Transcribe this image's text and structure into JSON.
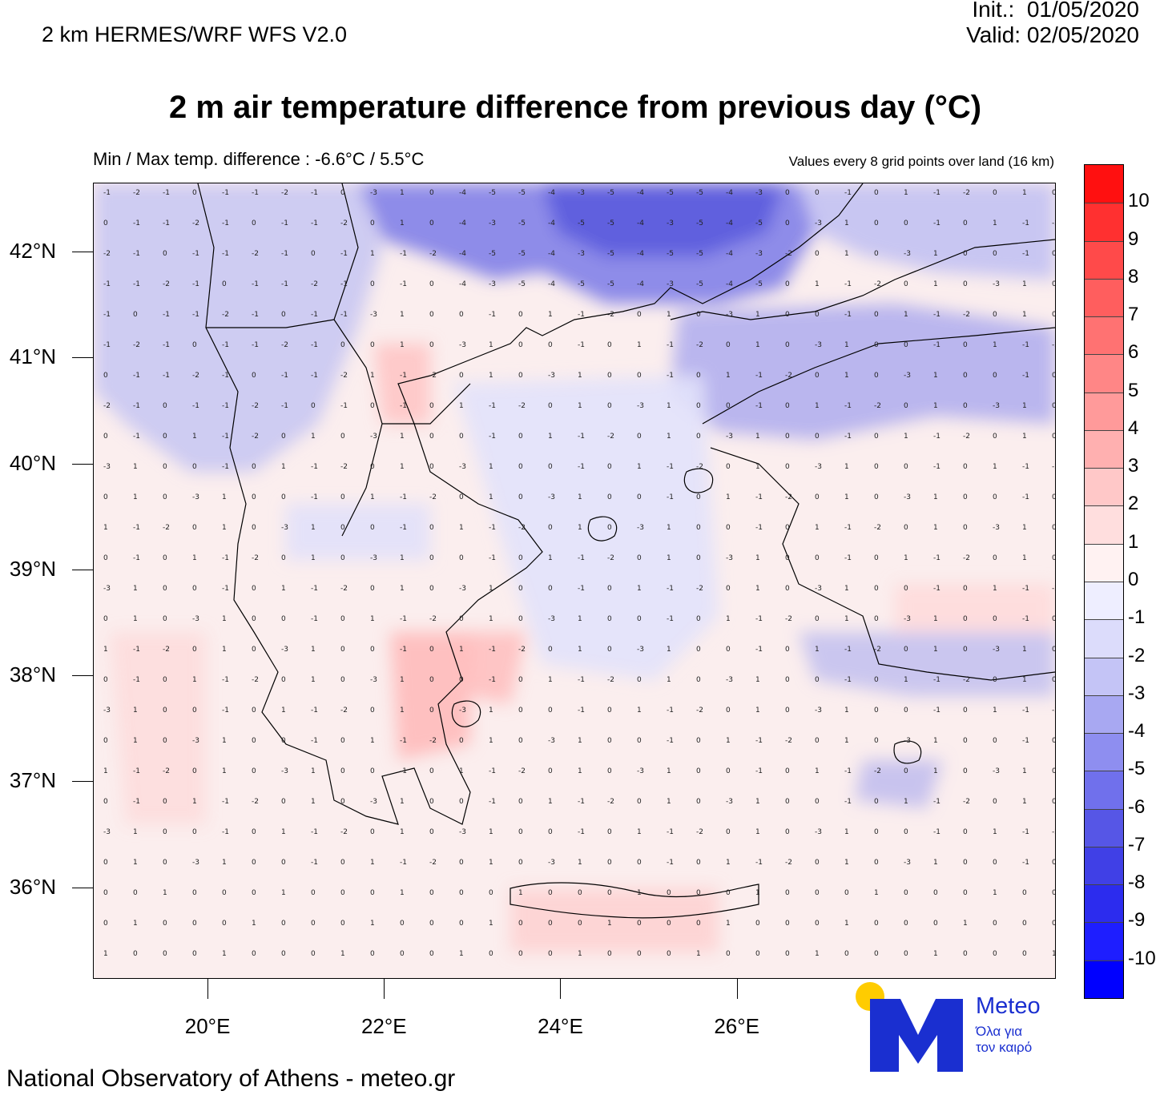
{
  "header": {
    "model_name": "2 km HERMES/WRF WFS V2.0",
    "init": "Init.:  01/05/2020",
    "valid": "Valid: 02/05/2020"
  },
  "title": "2 m air temperature difference from previous day (°C)",
  "notes": {
    "minmax": "Min / Max temp. difference : -6.6°C / 5.5°C",
    "grid": "Values every 8 grid points over land (16 km)"
  },
  "map": {
    "lat_labels": [
      "42°N",
      "41°N",
      "40°N",
      "39°N",
      "38°N",
      "37°N",
      "36°N"
    ],
    "lon_labels": [
      "20°E",
      "22°E",
      "24°E",
      "26°E"
    ],
    "lat_values": [
      42,
      41,
      40,
      39,
      38,
      37,
      36
    ],
    "lon_values": [
      20,
      22,
      24,
      26
    ],
    "extent": {
      "lon_min": 18.7,
      "lon_max": 29.6,
      "lat_min": 35.15,
      "lat_max": 42.65
    }
  },
  "legend": {
    "labels": [
      "10",
      "9",
      "8",
      "7",
      "6",
      "5",
      "4",
      "3",
      "2",
      "1",
      "0",
      "-1",
      "-2",
      "-3",
      "-4",
      "-5",
      "-6",
      "-7",
      "-8",
      "-9",
      "-10"
    ],
    "colors": [
      "#ff1010",
      "#ff3030",
      "#ff4a4a",
      "#ff5e5e",
      "#ff7272",
      "#ff8686",
      "#ff9a9a",
      "#ffb0b0",
      "#ffc8c8",
      "#ffdede",
      "#fff2f2",
      "#eeeeff",
      "#dcdcfb",
      "#c4c4f6",
      "#a8a8f2",
      "#8e8ef0",
      "#7070ec",
      "#5656e6",
      "#4040e6",
      "#2c2cee",
      "#1e1eff",
      "#0000ff"
    ]
  },
  "footer": "National Observatory of Athens - meteo.gr",
  "logo": {
    "word": "Meteo",
    "sub1": "Όλα για",
    "sub2": "τον καιρό",
    "sun_color": "#ffcc00",
    "brand_color": "#1a2fd0"
  }
}
